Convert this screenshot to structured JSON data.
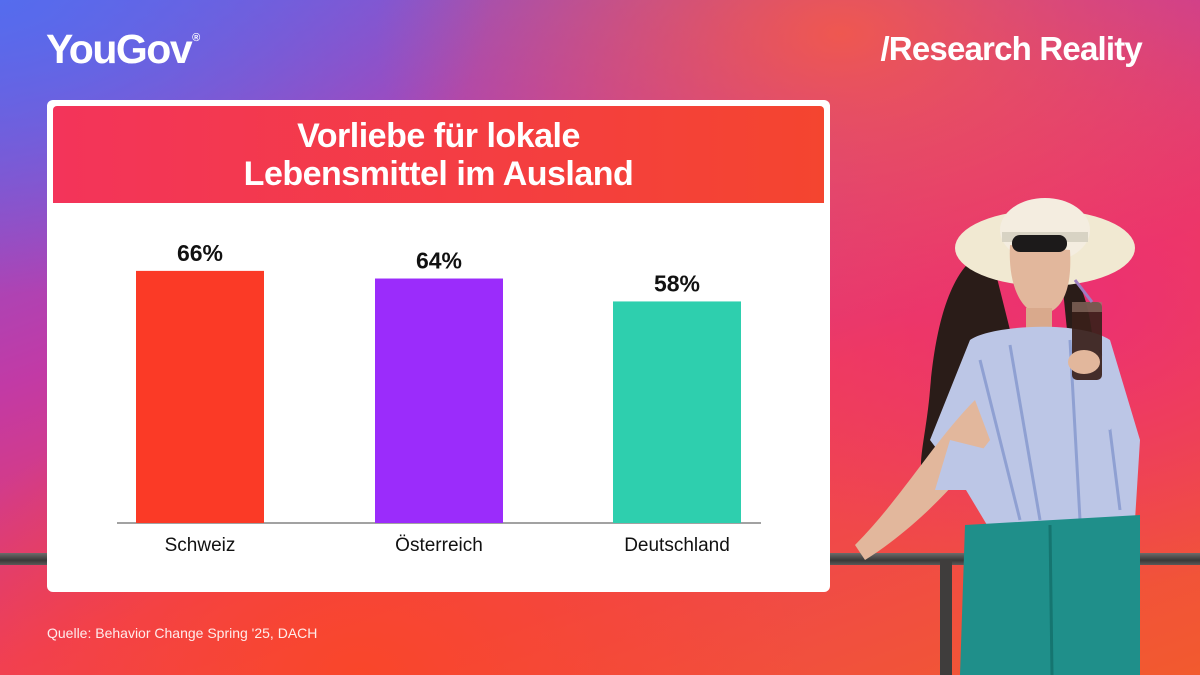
{
  "brand": {
    "logo": "YouGov",
    "registered": "®",
    "tagline": "/Research Reality"
  },
  "chart_data": {
    "type": "bar",
    "title_line1": "Vorliebe für lokale",
    "title_line2": "Lebensmittel im Ausland",
    "categories": [
      "Schweiz",
      "Österreich",
      "Deutschland"
    ],
    "values": [
      66,
      64,
      58
    ],
    "value_labels": [
      "66%",
      "64%",
      "58%"
    ],
    "colors": [
      "#fb3a26",
      "#9b2cfb",
      "#2ecfae"
    ],
    "ylim": [
      0,
      100
    ],
    "grid": false,
    "legend": "none"
  },
  "source": "Quelle: Behavior Change Spring '25, DACH"
}
